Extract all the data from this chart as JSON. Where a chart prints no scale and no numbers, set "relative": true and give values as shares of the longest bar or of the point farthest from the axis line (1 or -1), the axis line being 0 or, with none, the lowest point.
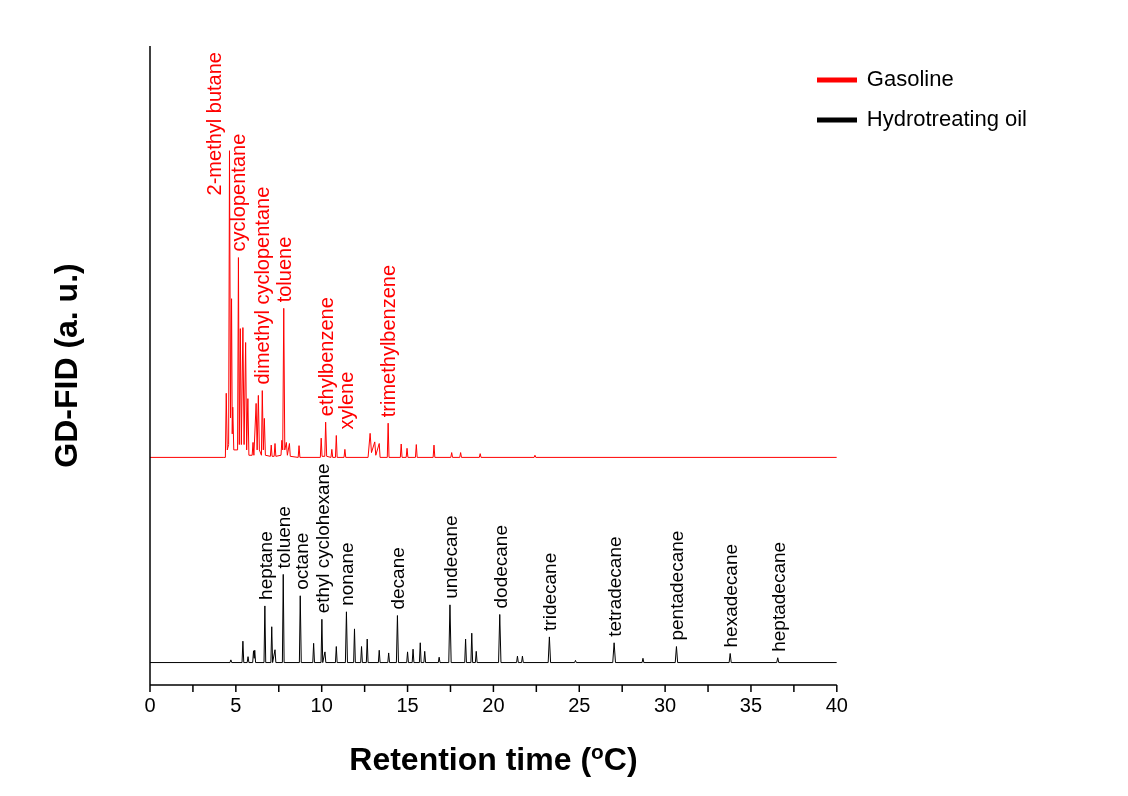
{
  "chart_data": {
    "type": "line",
    "relative": true,
    "xlabel": "Retention time ($^{o}$C)",
    "ylabel": "GD-FID (a. u.)",
    "xlim": [
      0,
      40
    ],
    "xticks": [
      0,
      {
        "value": 2.5,
        "label": null
      },
      5,
      {
        "value": 7.5,
        "label": null
      },
      10,
      {
        "value": 12.5,
        "label": null
      },
      15,
      {
        "value": 17.5,
        "label": null
      },
      20,
      {
        "value": 22.5,
        "label": null
      },
      25,
      {
        "value": 27.5,
        "label": null
      },
      30,
      {
        "value": 32.5,
        "label": null
      },
      35,
      {
        "value": 37.5,
        "label": null
      },
      40
    ],
    "legend": "top right",
    "series": [
      {
        "name": "Gasoline",
        "color": "#ff0000",
        "x": [
          0,
          4.3,
          4.39,
          4.44,
          4.5,
          4.58,
          4.63,
          4.69,
          4.75,
          4.79,
          4.82,
          4.88,
          5.1,
          5.15,
          5.2,
          5.26,
          5.32,
          5.41,
          5.48,
          5.57,
          5.63,
          5.7,
          5.76,
          5.95,
          6.0,
          6.05,
          6.18,
          6.24,
          6.31,
          6.37,
          6.49,
          6.54,
          6.6,
          6.66,
          6.72,
          7.01,
          7.06,
          7.11,
          7.23,
          7.28,
          7.33,
          7.63,
          7.68,
          7.73,
          7.79,
          7.85,
          7.94,
          8.0,
          8.12,
          8.17,
          8.63,
          8.68,
          8.73,
          9.92,
          9.97,
          10.02,
          10.18,
          10.23,
          10.29,
          10.54,
          10.59,
          10.64,
          10.8,
          10.85,
          10.9,
          11.3,
          11.35,
          11.4,
          12.7,
          12.82,
          12.9,
          13.09,
          13.15,
          13.35,
          13.4,
          13.82,
          13.87,
          13.92,
          14.58,
          14.63,
          14.68,
          14.92,
          14.97,
          15.02,
          15.46,
          15.51,
          15.56,
          16.49,
          16.54,
          16.59,
          17.52,
          17.57,
          17.62,
          18.04,
          18.09,
          18.14,
          19.18,
          19.23,
          19.28,
          22.37,
          22.42,
          22.47,
          40
        ],
        "values": [
          0.426,
          0.426,
          0.426,
          0.546,
          0.44,
          0.45,
          1.0,
          0.5,
          0.723,
          0.47,
          0.52,
          0.44,
          0.44,
          0.8,
          0.45,
          0.667,
          0.45,
          0.669,
          0.45,
          0.641,
          0.44,
          0.536,
          0.43,
          0.43,
          0.454,
          0.43,
          0.527,
          0.44,
          0.542,
          0.44,
          0.43,
          0.551,
          0.44,
          0.499,
          0.43,
          0.428,
          0.449,
          0.428,
          0.428,
          0.452,
          0.428,
          0.43,
          0.458,
          0.44,
          0.705,
          0.44,
          0.454,
          0.43,
          0.452,
          0.428,
          0.426,
          0.448,
          0.426,
          0.426,
          0.462,
          0.428,
          0.428,
          0.492,
          0.428,
          0.426,
          0.441,
          0.426,
          0.426,
          0.467,
          0.426,
          0.426,
          0.441,
          0.426,
          0.426,
          0.471,
          0.435,
          0.455,
          0.43,
          0.452,
          0.426,
          0.426,
          0.49,
          0.426,
          0.426,
          0.451,
          0.426,
          0.426,
          0.443,
          0.426,
          0.426,
          0.45,
          0.426,
          0.426,
          0.449,
          0.426,
          0.426,
          0.435,
          0.426,
          0.426,
          0.435,
          0.426,
          0.426,
          0.433,
          0.426,
          0.426,
          0.43,
          0.426,
          0.426
        ]
      },
      {
        "name": "Hydrotreating oil",
        "color": "#000000",
        "x": [
          0,
          4.66,
          4.71,
          4.76,
          5.36,
          5.41,
          5.46,
          5.66,
          5.71,
          5.76,
          5.98,
          6.03,
          6.07,
          6.1,
          6.15,
          6.64,
          6.69,
          6.74,
          7.04,
          7.09,
          7.14,
          7.28,
          7.33,
          7.71,
          7.76,
          7.81,
          8.7,
          8.75,
          8.81,
          9.48,
          9.53,
          9.58,
          9.96,
          10.01,
          10.06,
          10.19,
          10.24,
          10.8,
          10.85,
          10.9,
          11.38,
          11.44,
          11.5,
          11.86,
          11.91,
          11.96,
          12.27,
          12.32,
          12.37,
          12.6,
          12.65,
          12.7,
          13.3,
          13.35,
          13.4,
          13.85,
          13.9,
          13.95,
          14.35,
          14.41,
          14.47,
          14.95,
          15.0,
          15.05,
          15.27,
          15.32,
          15.37,
          15.69,
          15.74,
          15.79,
          15.95,
          16.0,
          16.05,
          16.79,
          16.84,
          16.89,
          17.4,
          17.47,
          17.54,
          18.33,
          18.38,
          18.43,
          18.69,
          18.74,
          18.79,
          18.95,
          19.0,
          19.05,
          20.3,
          20.37,
          20.44,
          21.35,
          21.4,
          21.45,
          21.64,
          21.69,
          21.74,
          23.19,
          23.26,
          23.33,
          24.73,
          24.78,
          24.83,
          26.95,
          27.03,
          27.11,
          28.66,
          28.71,
          28.76,
          30.59,
          30.66,
          30.73,
          33.73,
          33.79,
          33.85,
          36.5,
          36.56,
          36.62,
          40
        ],
        "values": [
          0.042,
          0.042,
          0.047,
          0.042,
          0.042,
          0.082,
          0.042,
          0.042,
          0.053,
          0.042,
          0.042,
          0.064,
          0.05,
          0.065,
          0.042,
          0.042,
          0.148,
          0.042,
          0.042,
          0.109,
          0.042,
          0.066,
          0.042,
          0.042,
          0.207,
          0.042,
          0.042,
          0.167,
          0.042,
          0.042,
          0.078,
          0.042,
          0.042,
          0.123,
          0.042,
          0.062,
          0.042,
          0.042,
          0.072,
          0.042,
          0.042,
          0.137,
          0.042,
          0.042,
          0.105,
          0.042,
          0.042,
          0.072,
          0.042,
          0.042,
          0.086,
          0.042,
          0.042,
          0.065,
          0.042,
          0.042,
          0.06,
          0.042,
          0.042,
          0.13,
          0.042,
          0.042,
          0.062,
          0.042,
          0.042,
          0.067,
          0.042,
          0.042,
          0.079,
          0.042,
          0.042,
          0.063,
          0.042,
          0.042,
          0.052,
          0.042,
          0.042,
          0.15,
          0.042,
          0.042,
          0.086,
          0.042,
          0.042,
          0.097,
          0.042,
          0.042,
          0.063,
          0.042,
          0.042,
          0.132,
          0.042,
          0.042,
          0.054,
          0.042,
          0.042,
          0.054,
          0.042,
          0.042,
          0.09,
          0.042,
          0.042,
          0.046,
          0.042,
          0.042,
          0.079,
          0.042,
          0.042,
          0.05,
          0.042,
          0.042,
          0.072,
          0.042,
          0.042,
          0.059,
          0.042,
          0.042,
          0.051,
          0.042,
          0.042
        ]
      }
    ],
    "annotations": [
      {
        "text": "2-methyl butane",
        "x": 4.63,
        "y": 1.0
      },
      {
        "text": "cyclopentane",
        "x": 5.15,
        "y": 0.8
      },
      {
        "text": "dimethyl cyclopentane",
        "x": 6.54,
        "y": 0.551
      },
      {
        "text": "toluene",
        "x": 7.79,
        "y": 0.705
      },
      {
        "text": "ethylbenzene",
        "x": 10.23,
        "y": 0.492
      },
      {
        "text": "xylene",
        "x": 10.85,
        "y": 0.467
      },
      {
        "text": "trimethylbenzene",
        "x": 13.87,
        "y": 0.49
      },
      {
        "text": "heptane",
        "x": 6.69,
        "y": 0.148
      },
      {
        "text": "toluene",
        "x": 7.76,
        "y": 0.207
      },
      {
        "text": "octane",
        "x": 8.75,
        "y": 0.167
      },
      {
        "text": "ethyl cyclohexane",
        "x": 10.01,
        "y": 0.123
      },
      {
        "text": "nonane",
        "x": 11.44,
        "y": 0.137
      },
      {
        "text": "decane",
        "x": 14.41,
        "y": 0.13
      },
      {
        "text": "undecane",
        "x": 17.47,
        "y": 0.15
      },
      {
        "text": "dodecane",
        "x": 20.37,
        "y": 0.132
      },
      {
        "text": "tridecane",
        "x": 23.26,
        "y": 0.09
      },
      {
        "text": "tetradecane",
        "x": 27.03,
        "y": 0.079
      },
      {
        "text": "pentadecane",
        "x": 30.66,
        "y": 0.072
      },
      {
        "text": "hexadecane",
        "x": 33.79,
        "y": 0.059
      },
      {
        "text": "heptadecane",
        "x": 36.56,
        "y": 0.051
      }
    ]
  }
}
